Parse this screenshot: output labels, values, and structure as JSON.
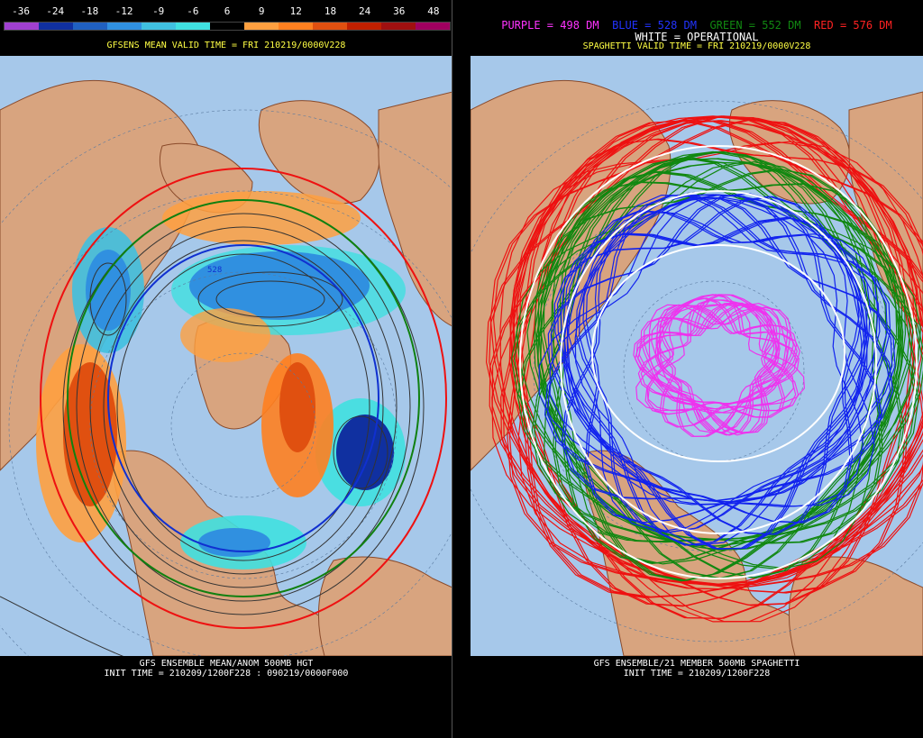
{
  "left": {
    "scale_labels": [
      "-36",
      "-24",
      "-18",
      "-12",
      "-9",
      "-6",
      "6",
      "9",
      "12",
      "18",
      "24",
      "36",
      "48"
    ],
    "scale_colors": [
      "#a040d0",
      "#1030a0",
      "#2060c0",
      "#3090e0",
      "#40c0e0",
      "#40e0e0",
      "#000000",
      "#ffa040",
      "#ff8020",
      "#e05010",
      "#c02000",
      "#a01010",
      "#a00060"
    ],
    "valid_time": "GFSENS MEAN VALID TIME = FRI 210219/0000V228",
    "contour_label": "528",
    "caption_line1": "GFS ENSEMBLE MEAN/ANOM 500MB HGT",
    "caption_line2": "INIT TIME = 210209/1200F228 : 090219/0000F000"
  },
  "right": {
    "legend_purple": "PURPLE = 498 DM",
    "legend_blue": "BLUE = 528 DM",
    "legend_green": "GREEN = 552 DM",
    "legend_red": "RED = 576 DM",
    "legend_white": "WHITE = OPERATIONAL",
    "valid_time": "SPAGHETTI VALID TIME = FRI 210219/0000V228",
    "caption_line1": "GFS ENSEMBLE/21 MEMBER 500MB SPAGHETTI",
    "caption_line2": "INIT TIME = 210209/1200F228"
  },
  "colors": {
    "ocean": "#a6c8ea",
    "land": "#d8a47f",
    "border": "#8a4a2a"
  }
}
